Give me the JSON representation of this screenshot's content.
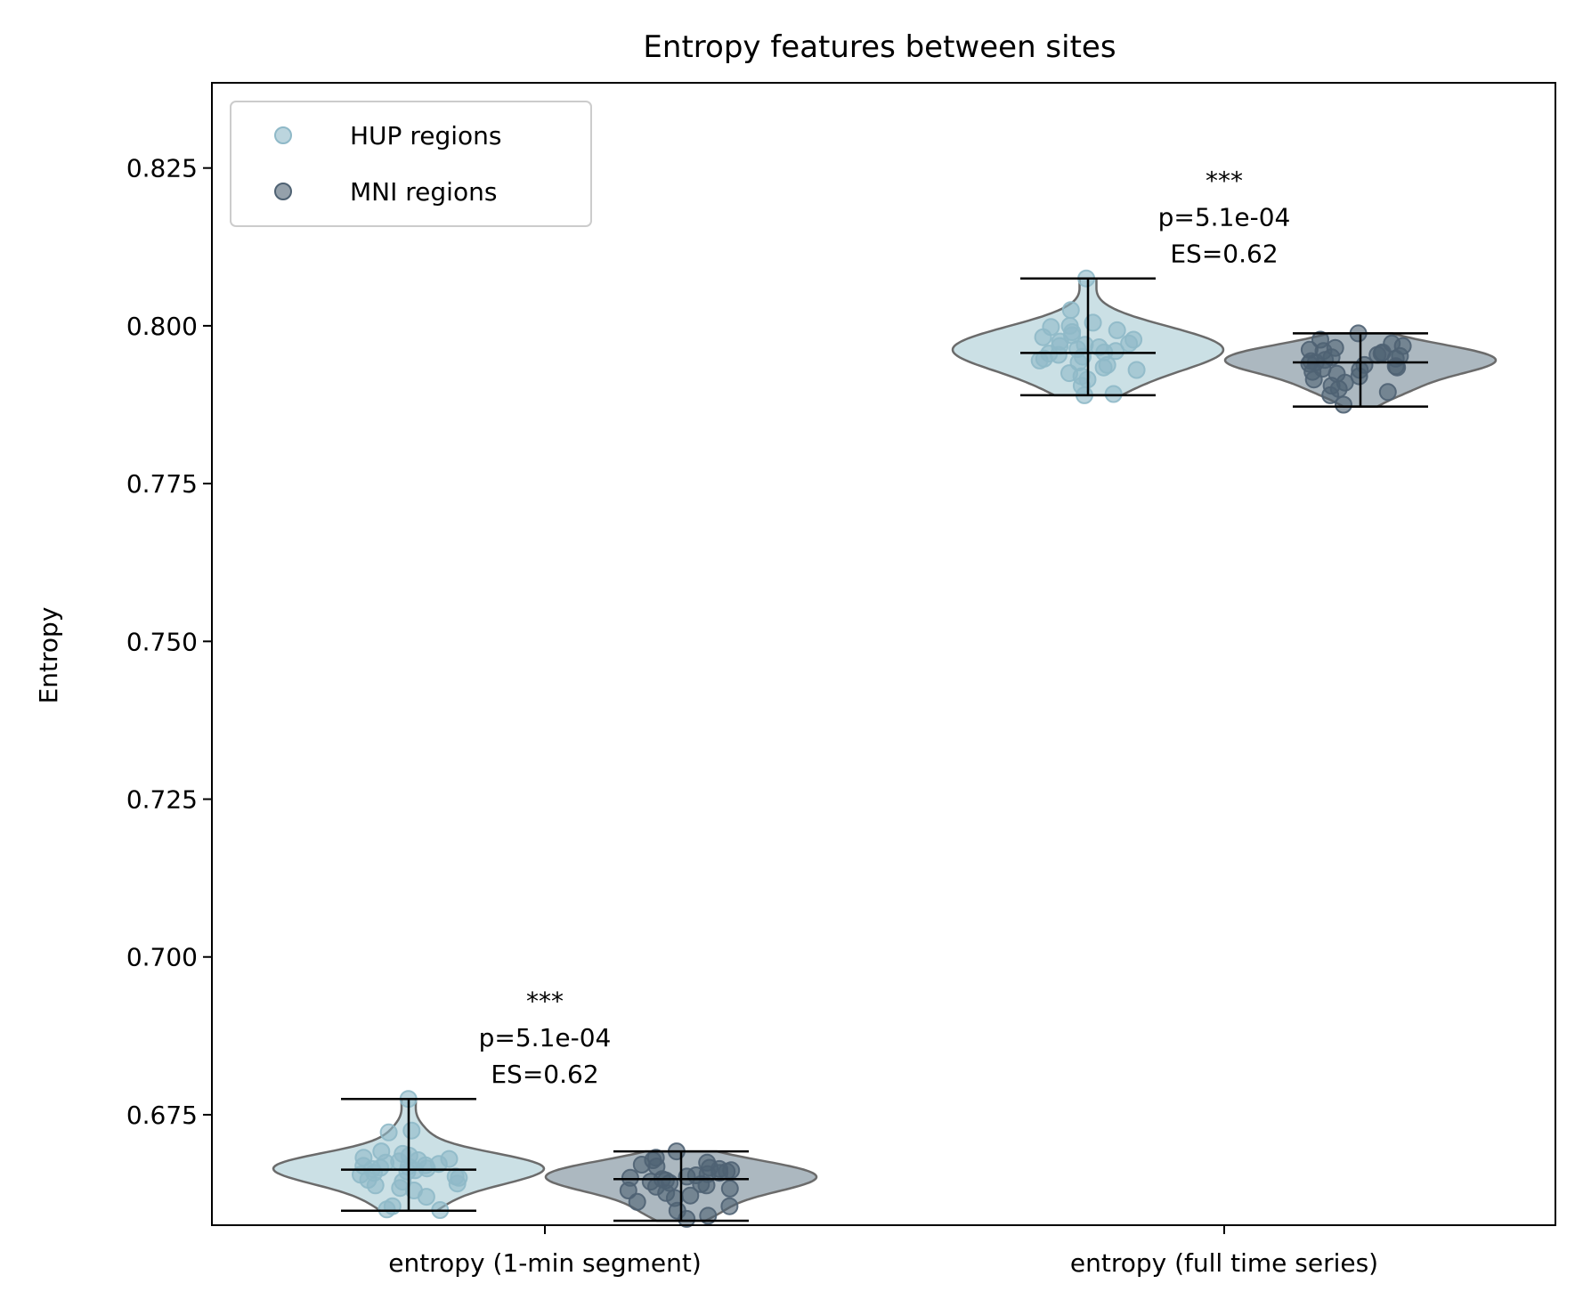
{
  "chart_data": {
    "type": "violin",
    "title": "Entropy features between sites",
    "xlabel": "",
    "ylabel": "Entropy",
    "ylim": [
      0.6575,
      0.8385
    ],
    "yticks": [
      0.675,
      0.7,
      0.725,
      0.75,
      0.775,
      0.8,
      0.825
    ],
    "ytick_labels": [
      "0.675",
      "0.700",
      "0.725",
      "0.750",
      "0.775",
      "0.800",
      "0.825"
    ],
    "categories": [
      "entropy (1-min segment)",
      "entropy (full time series)"
    ],
    "legend": {
      "placement": "top-left",
      "entries": [
        {
          "label": "HUP regions",
          "color": "#8fb9c8"
        },
        {
          "label": "MNI regions",
          "color": "#4f6273"
        }
      ]
    },
    "series": [
      {
        "name": "HUP regions",
        "color": "#8fb9c8",
        "fill": "#c2dae1",
        "groups": [
          {
            "category": "entropy (1-min segment)",
            "min": 0.6598,
            "max": 0.6775,
            "mean": 0.6663,
            "points": [
              0.6775,
              0.6725,
              0.6722,
              0.6692,
              0.6688,
              0.6685,
              0.6682,
              0.668,
              0.6678,
              0.6676,
              0.6674,
              0.6672,
              0.667,
              0.6669,
              0.6668,
              0.6666,
              0.6665,
              0.6664,
              0.6662,
              0.666,
              0.6658,
              0.6655,
              0.6652,
              0.665,
              0.6647,
              0.6644,
              0.6641,
              0.6638,
              0.6634,
              0.663,
              0.662,
              0.6605,
              0.66,
              0.6599
            ]
          },
          {
            "category": "entropy (full time series)",
            "min": 0.789,
            "max": 0.8075,
            "mean": 0.7957,
            "points": [
              0.8075,
              0.8025,
              0.8005,
              0.8,
              0.7998,
              0.7993,
              0.799,
              0.7985,
              0.7982,
              0.7978,
              0.7975,
              0.7972,
              0.797,
              0.7968,
              0.7966,
              0.7963,
              0.796,
              0.7958,
              0.7956,
              0.7954,
              0.7951,
              0.7948,
              0.7945,
              0.7942,
              0.7938,
              0.7934,
              0.793,
              0.7925,
              0.792,
              0.7915,
              0.7905,
              0.7892,
              0.789
            ]
          }
        ]
      },
      {
        "name": "MNI regions",
        "color": "#4f6273",
        "fill": "#9eabb5",
        "groups": [
          {
            "category": "entropy (1-min segment)",
            "min": 0.6582,
            "max": 0.6692,
            "mean": 0.6648,
            "points": [
              0.6692,
              0.6682,
              0.6678,
              0.6674,
              0.6671,
              0.6668,
              0.6666,
              0.6664,
              0.6662,
              0.666,
              0.6658,
              0.6656,
              0.6654,
              0.6652,
              0.665,
              0.6648,
              0.6646,
              0.6644,
              0.6642,
              0.664,
              0.6638,
              0.6636,
              0.6633,
              0.663,
              0.6626,
              0.6622,
              0.6618,
              0.6612,
              0.6605,
              0.6598,
              0.659,
              0.6585
            ]
          },
          {
            "category": "entropy (full time series)",
            "min": 0.7872,
            "max": 0.7988,
            "mean": 0.7942,
            "points": [
              0.7988,
              0.7978,
              0.7972,
              0.7968,
              0.7965,
              0.7962,
              0.796,
              0.7958,
              0.7956,
              0.7954,
              0.7952,
              0.795,
              0.7948,
              0.7946,
              0.7944,
              0.7942,
              0.794,
              0.7938,
              0.7936,
              0.7934,
              0.7932,
              0.793,
              0.7927,
              0.7924,
              0.792,
              0.7915,
              0.791,
              0.7905,
              0.79,
              0.7895,
              0.789,
              0.7875
            ]
          }
        ]
      }
    ],
    "annotations": [
      {
        "category": "entropy (1-min segment)",
        "lines": [
          "***",
          "p=5.1e-04",
          "ES=0.62"
        ]
      },
      {
        "category": "entropy (full time series)",
        "lines": [
          "***",
          "p=5.1e-04",
          "ES=0.62"
        ]
      }
    ]
  }
}
